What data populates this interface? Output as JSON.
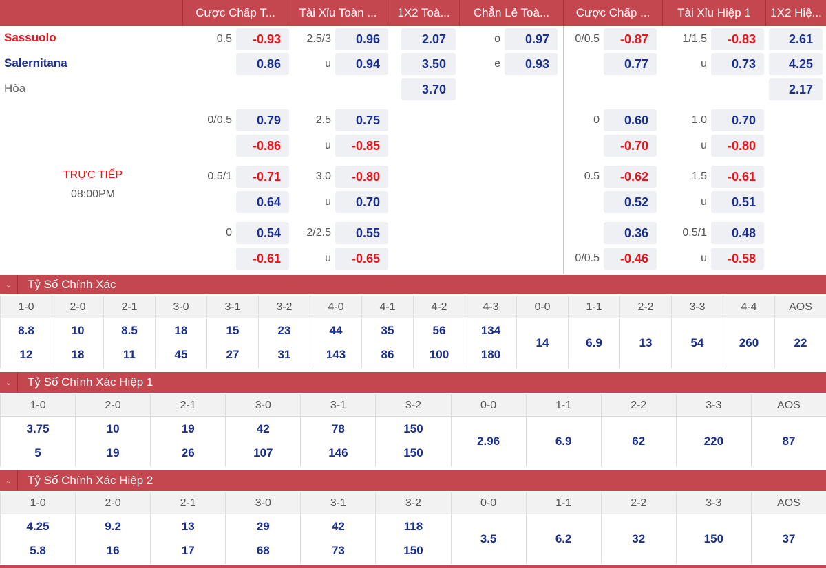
{
  "headers": [
    "Cược Chấp T...",
    "Tài Xỉu Toàn ...",
    "1X2 Toà...",
    "Chẳn Lẻ Toà...",
    "Cược Chấp ...",
    "Tài Xỉu Hiệp 1",
    "1X2 Hiệ..."
  ],
  "teams": {
    "home": "Sassuolo",
    "away": "Salernitana",
    "draw": "Hòa"
  },
  "match": {
    "status": "TRỰC TIẾP",
    "time": "08:00PM"
  },
  "groups": [
    {
      "ft_hdp": {
        "l1": "0.5",
        "l2": "",
        "o": [
          "-0.93",
          "0.86"
        ]
      },
      "ft_ou": {
        "l1": "2.5/3",
        "l2": "u",
        "o": [
          "0.96",
          "0.94"
        ]
      },
      "x12": [
        "2.07",
        "3.50",
        "3.70"
      ],
      "oe": {
        "l1": "o",
        "l2": "e",
        "o": [
          "0.97",
          "0.93"
        ]
      },
      "h1_hdp": {
        "l1": "0/0.5",
        "l2": "",
        "o": [
          "-0.87",
          "0.77"
        ]
      },
      "h1_ou": {
        "l1": "1/1.5",
        "l2": "u",
        "o": [
          "-0.83",
          "0.73"
        ]
      },
      "h1_x12": [
        "2.61",
        "4.25",
        "2.17"
      ]
    },
    {
      "ft_hdp": {
        "l1": "0/0.5",
        "l2": "",
        "o": [
          "0.79",
          "-0.86"
        ]
      },
      "ft_ou": {
        "l1": "2.5",
        "l2": "u",
        "o": [
          "0.75",
          "-0.85"
        ]
      },
      "h1_hdp": {
        "l1": "0",
        "l2": "",
        "o": [
          "0.60",
          "-0.70"
        ]
      },
      "h1_ou": {
        "l1": "1.0",
        "l2": "u",
        "o": [
          "0.70",
          "-0.80"
        ]
      }
    },
    {
      "ft_hdp": {
        "l1": "0.5/1",
        "l2": "",
        "o": [
          "-0.71",
          "0.64"
        ]
      },
      "ft_ou": {
        "l1": "3.0",
        "l2": "u",
        "o": [
          "-0.80",
          "0.70"
        ]
      },
      "h1_hdp": {
        "l1": "0.5",
        "l2": "",
        "o": [
          "-0.62",
          "0.52"
        ]
      },
      "h1_ou": {
        "l1": "1.5",
        "l2": "u",
        "o": [
          "-0.61",
          "0.51"
        ]
      }
    },
    {
      "ft_hdp": {
        "l1": "0",
        "l2": "",
        "o": [
          "0.54",
          "-0.61"
        ]
      },
      "ft_ou": {
        "l1": "2/2.5",
        "l2": "u",
        "o": [
          "0.55",
          "-0.65"
        ]
      },
      "h1_hdp": {
        "l1": "",
        "l2": "0/0.5",
        "o": [
          "0.36",
          "-0.46"
        ]
      },
      "h1_ou": {
        "l1": "0.5/1",
        "l2": "u",
        "o": [
          "0.48",
          "-0.58"
        ]
      }
    }
  ],
  "sections": [
    {
      "title": "Tỷ Số Chính Xác",
      "cols": [
        {
          "s": "1-0",
          "v": [
            "8.8",
            "12"
          ]
        },
        {
          "s": "2-0",
          "v": [
            "10",
            "18"
          ]
        },
        {
          "s": "2-1",
          "v": [
            "8.5",
            "11"
          ]
        },
        {
          "s": "3-0",
          "v": [
            "18",
            "45"
          ]
        },
        {
          "s": "3-1",
          "v": [
            "15",
            "27"
          ]
        },
        {
          "s": "3-2",
          "v": [
            "23",
            "31"
          ]
        },
        {
          "s": "4-0",
          "v": [
            "44",
            "143"
          ]
        },
        {
          "s": "4-1",
          "v": [
            "35",
            "86"
          ]
        },
        {
          "s": "4-2",
          "v": [
            "56",
            "100"
          ]
        },
        {
          "s": "4-3",
          "v": [
            "134",
            "180"
          ]
        },
        {
          "s": "0-0",
          "v": [
            "14"
          ]
        },
        {
          "s": "1-1",
          "v": [
            "6.9"
          ]
        },
        {
          "s": "2-2",
          "v": [
            "13"
          ]
        },
        {
          "s": "3-3",
          "v": [
            "54"
          ]
        },
        {
          "s": "4-4",
          "v": [
            "260"
          ]
        },
        {
          "s": "AOS",
          "v": [
            "22"
          ]
        }
      ]
    },
    {
      "title": "Tỷ Số Chính Xác Hiệp 1",
      "cols": [
        {
          "s": "1-0",
          "v": [
            "3.75",
            "5"
          ]
        },
        {
          "s": "2-0",
          "v": [
            "10",
            "19"
          ]
        },
        {
          "s": "2-1",
          "v": [
            "19",
            "26"
          ]
        },
        {
          "s": "3-0",
          "v": [
            "42",
            "107"
          ]
        },
        {
          "s": "3-1",
          "v": [
            "78",
            "146"
          ]
        },
        {
          "s": "3-2",
          "v": [
            "150",
            "150"
          ]
        },
        {
          "s": "0-0",
          "v": [
            "2.96"
          ]
        },
        {
          "s": "1-1",
          "v": [
            "6.9"
          ]
        },
        {
          "s": "2-2",
          "v": [
            "62"
          ]
        },
        {
          "s": "3-3",
          "v": [
            "220"
          ]
        },
        {
          "s": "AOS",
          "v": [
            "87"
          ]
        }
      ]
    },
    {
      "title": "Tỷ Số Chính Xác Hiệp 2",
      "cols": [
        {
          "s": "1-0",
          "v": [
            "4.25",
            "5.8"
          ]
        },
        {
          "s": "2-0",
          "v": [
            "9.2",
            "16"
          ]
        },
        {
          "s": "2-1",
          "v": [
            "13",
            "17"
          ]
        },
        {
          "s": "3-0",
          "v": [
            "29",
            "68"
          ]
        },
        {
          "s": "3-1",
          "v": [
            "42",
            "73"
          ]
        },
        {
          "s": "3-2",
          "v": [
            "118",
            "150"
          ]
        },
        {
          "s": "0-0",
          "v": [
            "3.5"
          ]
        },
        {
          "s": "1-1",
          "v": [
            "6.2"
          ]
        },
        {
          "s": "2-2",
          "v": [
            "32"
          ]
        },
        {
          "s": "3-3",
          "v": [
            "150"
          ]
        },
        {
          "s": "AOS",
          "v": [
            "37"
          ]
        }
      ]
    }
  ],
  "colors": {
    "header": "#c4464f",
    "negative": "#e8141b",
    "positive": "#1b2f8f"
  }
}
